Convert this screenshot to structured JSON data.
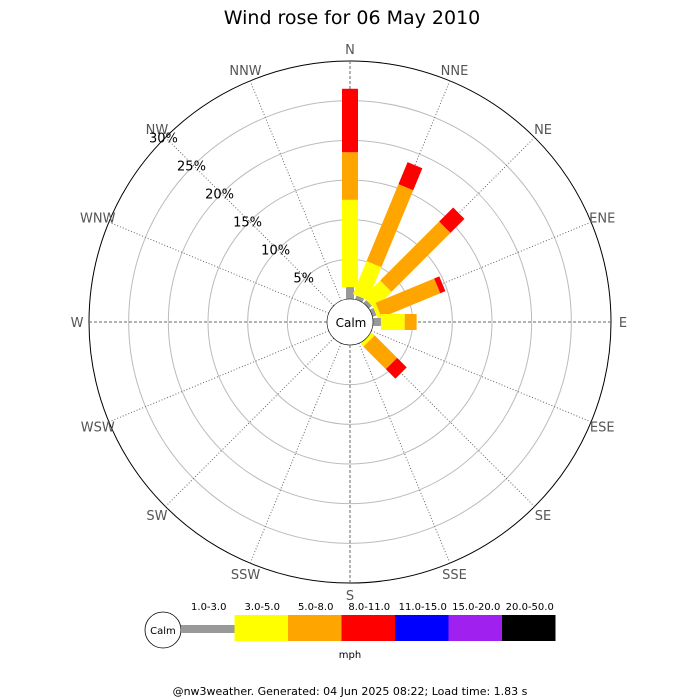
{
  "chart_data": {
    "type": "wind-rose",
    "title": "Wind rose for 06 May 2010",
    "directions": [
      "N",
      "NNE",
      "NE",
      "ENE",
      "E",
      "ESE",
      "SE",
      "SSE",
      "S",
      "SSW",
      "SW",
      "WSW",
      "W",
      "WNW",
      "NW",
      "NNW"
    ],
    "ring_labels": [
      "5%",
      "10%",
      "15%",
      "20%",
      "25%",
      "30%"
    ],
    "ring_values": [
      5,
      10,
      15,
      20,
      25,
      30
    ],
    "rmax": 30,
    "calm_label": "Calm",
    "speed_bins": [
      "1.0-3.0",
      "3.0-5.0",
      "5.0-8.0",
      "8.0-11.0",
      "11.0-15.0",
      "15.0-20.0",
      "20.0-50.0"
    ],
    "bin_colors": [
      "#999999",
      "#ffff00",
      "#ffa500",
      "#ff0000",
      "#0000ff",
      "#a020f0",
      "#000000"
    ],
    "unit": "mph",
    "series": [
      {
        "direction": "N",
        "cumulative": [
          1.5,
          12.5,
          18.5,
          26.5
        ]
      },
      {
        "direction": "NNE",
        "cumulative": [
          0.5,
          5.0,
          15.5,
          18.5
        ]
      },
      {
        "direction": "NE",
        "cumulative": [
          0.5,
          3.5,
          14.0,
          16.5
        ]
      },
      {
        "direction": "ENE",
        "cumulative": [
          0.5,
          1.0,
          9.0,
          9.7
        ]
      },
      {
        "direction": "E",
        "cumulative": [
          1.0,
          4.0,
          5.5,
          5.5
        ]
      },
      {
        "direction": "ESE",
        "cumulative": [
          0,
          0,
          0,
          0
        ]
      },
      {
        "direction": "SE",
        "cumulative": [
          0,
          0.5,
          4.5,
          6.2
        ]
      },
      {
        "direction": "SSE",
        "cumulative": [
          0,
          0,
          0,
          0
        ]
      },
      {
        "direction": "S",
        "cumulative": [
          0,
          0,
          0,
          0
        ]
      },
      {
        "direction": "SSW",
        "cumulative": [
          0,
          0,
          0,
          0
        ]
      },
      {
        "direction": "SW",
        "cumulative": [
          0,
          0,
          0,
          0
        ]
      },
      {
        "direction": "WSW",
        "cumulative": [
          0,
          0,
          0,
          0
        ]
      },
      {
        "direction": "W",
        "cumulative": [
          0,
          0,
          0,
          0
        ]
      },
      {
        "direction": "WNW",
        "cumulative": [
          0,
          0,
          0,
          0
        ]
      },
      {
        "direction": "NW",
        "cumulative": [
          0,
          0,
          0,
          0
        ]
      },
      {
        "direction": "NNW",
        "cumulative": [
          0,
          0,
          0,
          0
        ]
      }
    ],
    "footer": "@nw3weather. Generated: 04 Jun 2025 08:22; Load time: 1.83 s"
  }
}
